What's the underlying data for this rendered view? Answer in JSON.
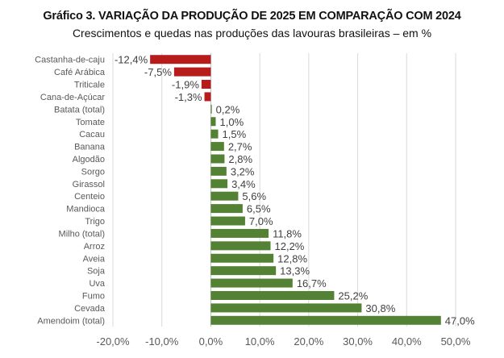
{
  "chart_data": {
    "type": "bar",
    "orientation": "horizontal",
    "title": "Gráfico 3. VARIAÇÃO DA PRODUÇÃO DE 2025 EM COMPARAÇÃO COM 2024",
    "subtitle": "Crescimentos e quedas nas produções das lavouras brasileiras – em %",
    "categories": [
      "Castanha-de-caju",
      "Café Arábica",
      "Triticale",
      "Cana-de-Açúcar",
      "Batata (total)",
      "Tomate",
      "Cacau",
      "Banana",
      "Algodão",
      "Sorgo",
      "Girassol",
      "Centeio",
      "Mandioca",
      "Trigo",
      "Milho (total)",
      "Arroz",
      "Aveia",
      "Soja",
      "Uva",
      "Fumo",
      "Cevada",
      "Amendoim (total)"
    ],
    "values": [
      -12.4,
      -7.5,
      -1.9,
      -1.3,
      0.2,
      1.0,
      1.5,
      2.7,
      2.8,
      3.2,
      3.4,
      5.6,
      6.5,
      7.0,
      11.8,
      12.2,
      12.8,
      13.3,
      16.7,
      25.2,
      30.8,
      47.0
    ],
    "value_labels": [
      "-12,4%",
      "-7,5%",
      "-1,9%",
      "-1,3%",
      "0,2%",
      "1,0%",
      "1,5%",
      "2,7%",
      "2,8%",
      "3,2%",
      "3,4%",
      "5,6%",
      "6,5%",
      "7,0%",
      "11,8%",
      "12,2%",
      "12,8%",
      "13,3%",
      "16,7%",
      "25,2%",
      "30,8%",
      "47,0%"
    ],
    "xlim": [
      -20,
      50
    ],
    "xticks": [
      -20,
      -10,
      0,
      10,
      20,
      30,
      40,
      50
    ],
    "xtick_labels": [
      "-20,0%",
      "-10,0%",
      "0,0%",
      "10,0%",
      "20,0%",
      "30,0%",
      "40,0%",
      "50,0%"
    ],
    "xlabel": "",
    "ylabel": "",
    "grid": true,
    "colors": {
      "negative": "#b71c1c",
      "positive": "#548235",
      "grid": "#d9d9d9"
    }
  }
}
